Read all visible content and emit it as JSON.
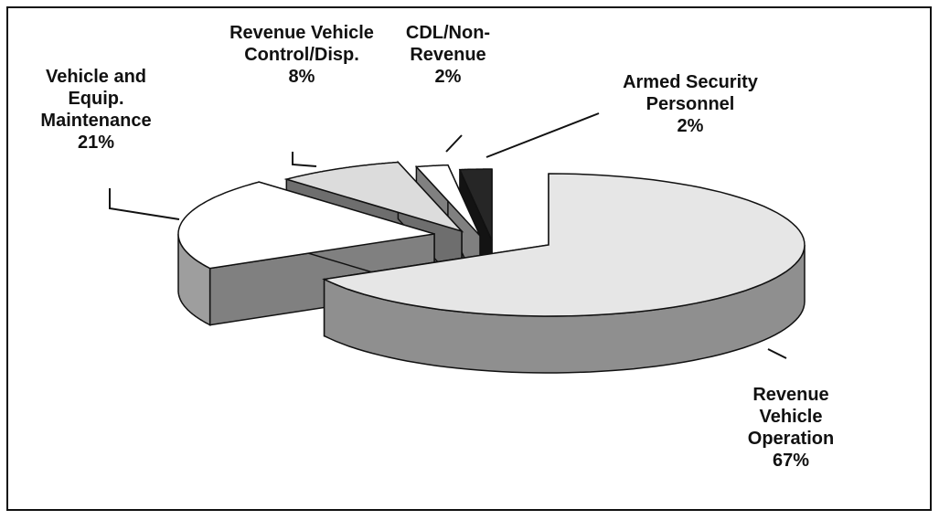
{
  "chart_data": {
    "type": "pie3d",
    "categories": [
      "Revenue Vehicle Operation",
      "Vehicle and Equip. Maintenance",
      "Revenue Vehicle Control/Disp.",
      "CDL/Non-Revenue",
      "Armed Security Personnel"
    ],
    "values": [
      67,
      21,
      8,
      2,
      2
    ],
    "value_labels": [
      "67%",
      "21%",
      "8%",
      "2%",
      "2%"
    ],
    "colors": [
      "#e6e6e6",
      "#ffffff",
      "#dcdcdc",
      "#ffffff",
      "#262626"
    ]
  }
}
